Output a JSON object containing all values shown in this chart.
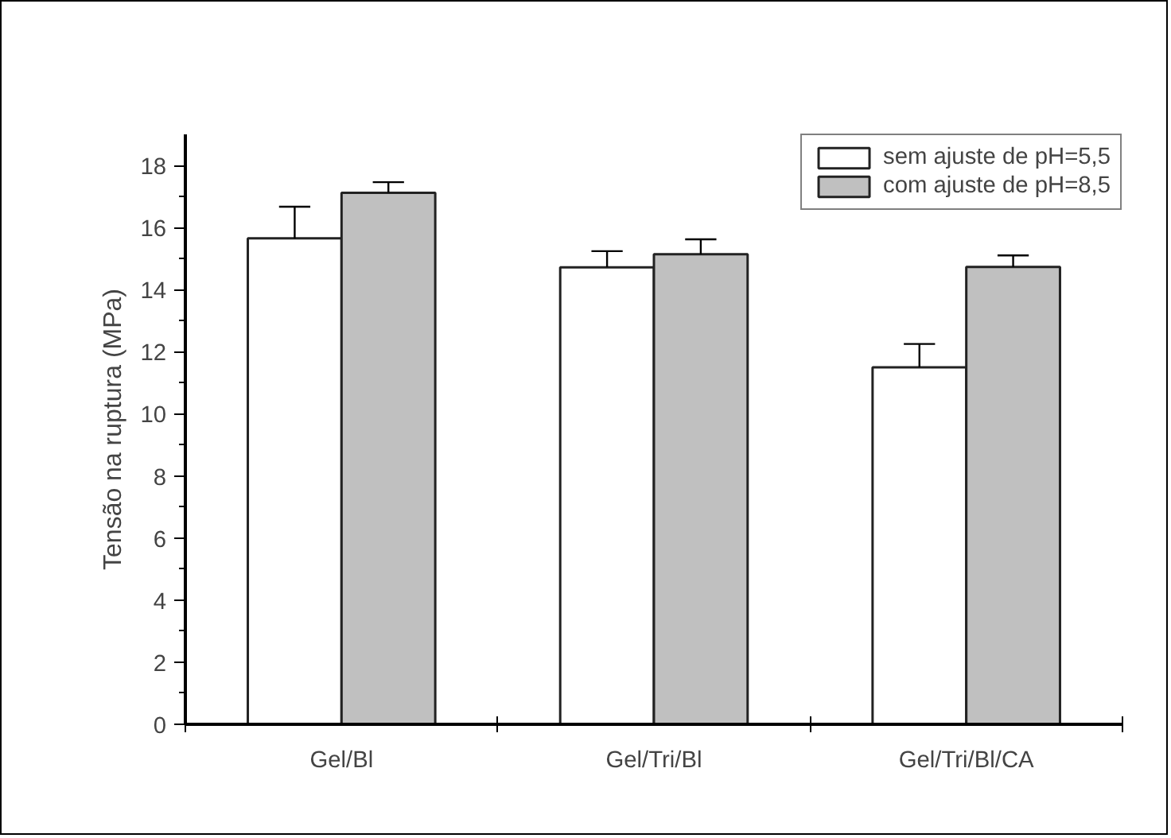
{
  "chart_data": {
    "type": "bar",
    "ylabel": "Tensão na ruptura (MPa)",
    "categories": [
      "Gel/Bl",
      "Gel/Tri/Bl",
      "Gel/Tri/Bl/CA"
    ],
    "series": [
      {
        "name": "sem ajuste de pH=5,5",
        "color": "#ffffff",
        "values": [
          15.65,
          14.72,
          11.5
        ],
        "errors": [
          [
            15.65,
            16.67
          ],
          [
            14.72,
            15.24
          ],
          [
            11.5,
            12.25
          ]
        ]
      },
      {
        "name": "com ajuste de pH=8,5",
        "color": "#c0c0c0",
        "values": [
          17.12,
          15.14,
          14.73
        ],
        "errors": [
          [
            17.12,
            17.46
          ],
          [
            15.14,
            15.62
          ],
          [
            14.73,
            15.1
          ]
        ]
      }
    ],
    "ylim": [
      0,
      19
    ],
    "yticks": [
      0,
      {
        "value": 1,
        "label": null
      },
      2,
      {
        "value": 3,
        "label": null
      },
      4,
      {
        "value": 5,
        "label": null
      },
      6,
      {
        "value": 7,
        "label": null
      },
      8,
      {
        "value": 9,
        "label": null
      },
      10,
      {
        "value": 11,
        "label": null
      },
      12,
      {
        "value": 13,
        "label": null
      },
      14,
      {
        "value": 15,
        "label": null
      },
      16,
      {
        "value": 17,
        "label": null
      },
      18
    ],
    "grid": false,
    "legend": "top right"
  }
}
